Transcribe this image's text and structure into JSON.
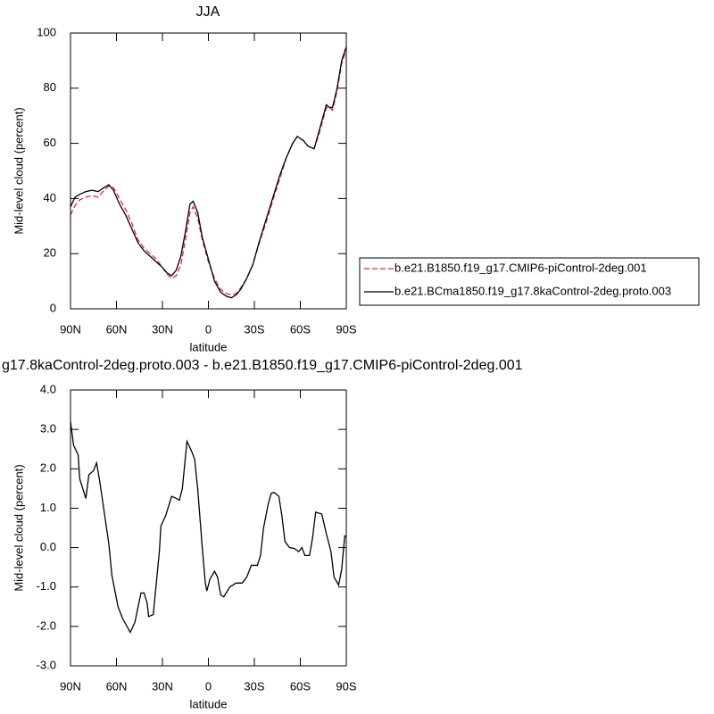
{
  "chart_data": [
    {
      "type": "line",
      "title": "JJA",
      "xlabel": "latitude",
      "ylabel": "Mid-level cloud (percent)",
      "x": [
        90,
        87,
        84,
        80,
        76,
        72,
        68,
        65,
        62,
        58,
        54,
        50,
        46,
        42,
        38,
        34,
        30,
        27,
        24,
        21,
        18,
        15,
        12,
        10,
        7,
        4,
        0,
        -4,
        -8,
        -12,
        -15,
        -18,
        -21,
        -25,
        -29,
        -33,
        -38,
        -43,
        -47,
        -51,
        -55,
        -58,
        -62,
        -65,
        -69,
        -72,
        -75,
        -77,
        -79,
        -81,
        -84,
        -87,
        -90
      ],
      "series": [
        {
          "name": "b.e21.B1850.f19_g17.CMIP6-piControl-2deg.001",
          "color": "#e8282b",
          "line_style": "dashed",
          "values": [
            34,
            37.5,
            39.5,
            40.5,
            41,
            40.5,
            43,
            44.5,
            44,
            40,
            36,
            31,
            25,
            22,
            20,
            18,
            15,
            12.5,
            11,
            12,
            16,
            25,
            35,
            37,
            33,
            25,
            17,
            11,
            7,
            5.5,
            5,
            5.5,
            7.5,
            11,
            16,
            23.5,
            32,
            41,
            48,
            55,
            60,
            62.5,
            61,
            59,
            58,
            63,
            69,
            73,
            73,
            72,
            79,
            89,
            94
          ]
        },
        {
          "name": "b.e21.BCma1850.f19_g17.8kaControl-2deg.proto.003",
          "color": "#000000",
          "line_style": "solid",
          "values": [
            37,
            40.5,
            41.5,
            42.5,
            43,
            42.5,
            44,
            45,
            43,
            38,
            34,
            29,
            24,
            21,
            19,
            17,
            15,
            13,
            12,
            14,
            19,
            28,
            38,
            39,
            35,
            26,
            18,
            10,
            6,
            4.5,
            4,
            5,
            7,
            11,
            16,
            24,
            33,
            42,
            49,
            55,
            60,
            62.5,
            61,
            59,
            58,
            64,
            70,
            74,
            73,
            73,
            80,
            90,
            95
          ]
        }
      ],
      "xlim": [
        90,
        -90
      ],
      "xticks": [
        {
          "value": 90,
          "label": "90N"
        },
        {
          "value": 60,
          "label": "60N"
        },
        {
          "value": 30,
          "label": "30N"
        },
        0,
        {
          "value": -30,
          "label": "30S"
        },
        {
          "value": -60,
          "label": "60S"
        },
        {
          "value": -90,
          "label": "90S"
        }
      ],
      "ylim": [
        0,
        100
      ],
      "yticks": [
        0,
        20,
        40,
        60,
        80,
        100
      ],
      "legend": "right"
    },
    {
      "type": "line",
      "title": "g17.8kaControl-2deg.proto.003 - b.e21.B1850.f19_g17.CMIP6-piControl-2deg.001",
      "xlabel": "latitude",
      "ylabel": "Mid-level cloud (percent)",
      "x": [
        90,
        88,
        85,
        84,
        80,
        78,
        75,
        73,
        71,
        68,
        65,
        63,
        59,
        56,
        51,
        48,
        44,
        42,
        40,
        39,
        36,
        34,
        32,
        31,
        28,
        24,
        21,
        19,
        17,
        14,
        11,
        9,
        7,
        4,
        2,
        1,
        -1,
        -4,
        -6,
        -8,
        -10,
        -14,
        -18,
        -22,
        -25,
        -28,
        -32,
        -34,
        -36,
        -39,
        -41,
        -43,
        -46,
        -48,
        -50,
        -53,
        -56,
        -59,
        -61,
        -63,
        -66,
        -68,
        -70,
        -74,
        -77,
        -80,
        -82,
        -85,
        -87,
        -89,
        -90
      ],
      "series": [
        {
          "color": "#000000",
          "line_style": "solid",
          "values": [
            3.2,
            2.6,
            2.35,
            1.75,
            1.25,
            1.85,
            1.95,
            2.15,
            1.7,
            0.9,
            0.1,
            -0.7,
            -1.5,
            -1.8,
            -2.15,
            -1.9,
            -1.15,
            -1.15,
            -1.4,
            -1.75,
            -1.7,
            -0.9,
            -0.1,
            0.55,
            0.8,
            1.3,
            1.25,
            1.2,
            1.5,
            2.7,
            2.45,
            2.25,
            1.5,
            0,
            -0.9,
            -1.1,
            -0.8,
            -0.6,
            -0.75,
            -1.2,
            -1.25,
            -1.0,
            -0.9,
            -0.9,
            -0.75,
            -0.45,
            -0.45,
            -0.2,
            0.5,
            1.1,
            1.38,
            1.4,
            1.3,
            0.8,
            0.15,
            0,
            -0.02,
            -0.1,
            0,
            -0.2,
            -0.2,
            0.25,
            0.9,
            0.85,
            0.35,
            -0.1,
            -0.75,
            -0.95,
            -0.55,
            0.3,
            0.28
          ]
        }
      ],
      "xlim": [
        90,
        -90
      ],
      "xticks": [
        {
          "value": 90,
          "label": "90N"
        },
        {
          "value": 60,
          "label": "60N"
        },
        {
          "value": 30,
          "label": "30N"
        },
        0,
        {
          "value": -30,
          "label": "30S"
        },
        {
          "value": -60,
          "label": "60S"
        },
        {
          "value": -90,
          "label": "90S"
        }
      ],
      "ylim": [
        -3,
        4
      ],
      "yticks": [
        {
          "value": -3,
          "label": "-3.0"
        },
        {
          "value": -2,
          "label": "-2.0"
        },
        {
          "value": -1,
          "label": "-1.0"
        },
        {
          "value": 0,
          "label": "0.0"
        },
        {
          "value": 1,
          "label": "1.0"
        },
        {
          "value": 2,
          "label": "2.0"
        },
        {
          "value": 3,
          "label": "3.0"
        },
        {
          "value": 4,
          "label": "4.0"
        }
      ]
    }
  ]
}
